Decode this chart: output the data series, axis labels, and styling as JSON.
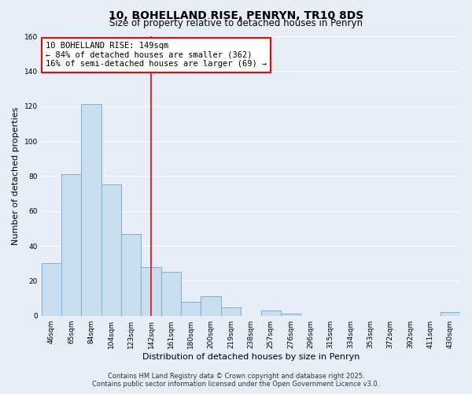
{
  "title": "10, BOHELLAND RISE, PENRYN, TR10 8DS",
  "subtitle": "Size of property relative to detached houses in Penryn",
  "xlabel": "Distribution of detached houses by size in Penryn",
  "ylabel": "Number of detached properties",
  "bar_labels": [
    "46sqm",
    "65sqm",
    "84sqm",
    "104sqm",
    "123sqm",
    "142sqm",
    "161sqm",
    "180sqm",
    "200sqm",
    "219sqm",
    "238sqm",
    "257sqm",
    "276sqm",
    "296sqm",
    "315sqm",
    "334sqm",
    "353sqm",
    "372sqm",
    "392sqm",
    "411sqm",
    "430sqm"
  ],
  "bar_values": [
    30,
    81,
    121,
    75,
    47,
    28,
    25,
    8,
    11,
    5,
    0,
    3,
    1,
    0,
    0,
    0,
    0,
    0,
    0,
    0,
    2
  ],
  "bar_color": "#c9dff0",
  "bar_edge_color": "#7bafd4",
  "background_color": "#e8eef8",
  "grid_color": "#ffffff",
  "ylim": [
    0,
    160
  ],
  "yticks": [
    0,
    20,
    40,
    60,
    80,
    100,
    120,
    140,
    160
  ],
  "red_line_index": 5,
  "annotation_box_text": "10 BOHELLAND RISE: 149sqm\n← 84% of detached houses are smaller (362)\n16% of semi-detached houses are larger (69) →",
  "footer_line1": "Contains HM Land Registry data © Crown copyright and database right 2025.",
  "footer_line2": "Contains public sector information licensed under the Open Government Licence v3.0.",
  "title_fontsize": 10,
  "subtitle_fontsize": 8.5,
  "annotation_fontsize": 7.5,
  "footer_fontsize": 6,
  "tick_label_fontsize": 6.5,
  "axis_label_fontsize": 8
}
